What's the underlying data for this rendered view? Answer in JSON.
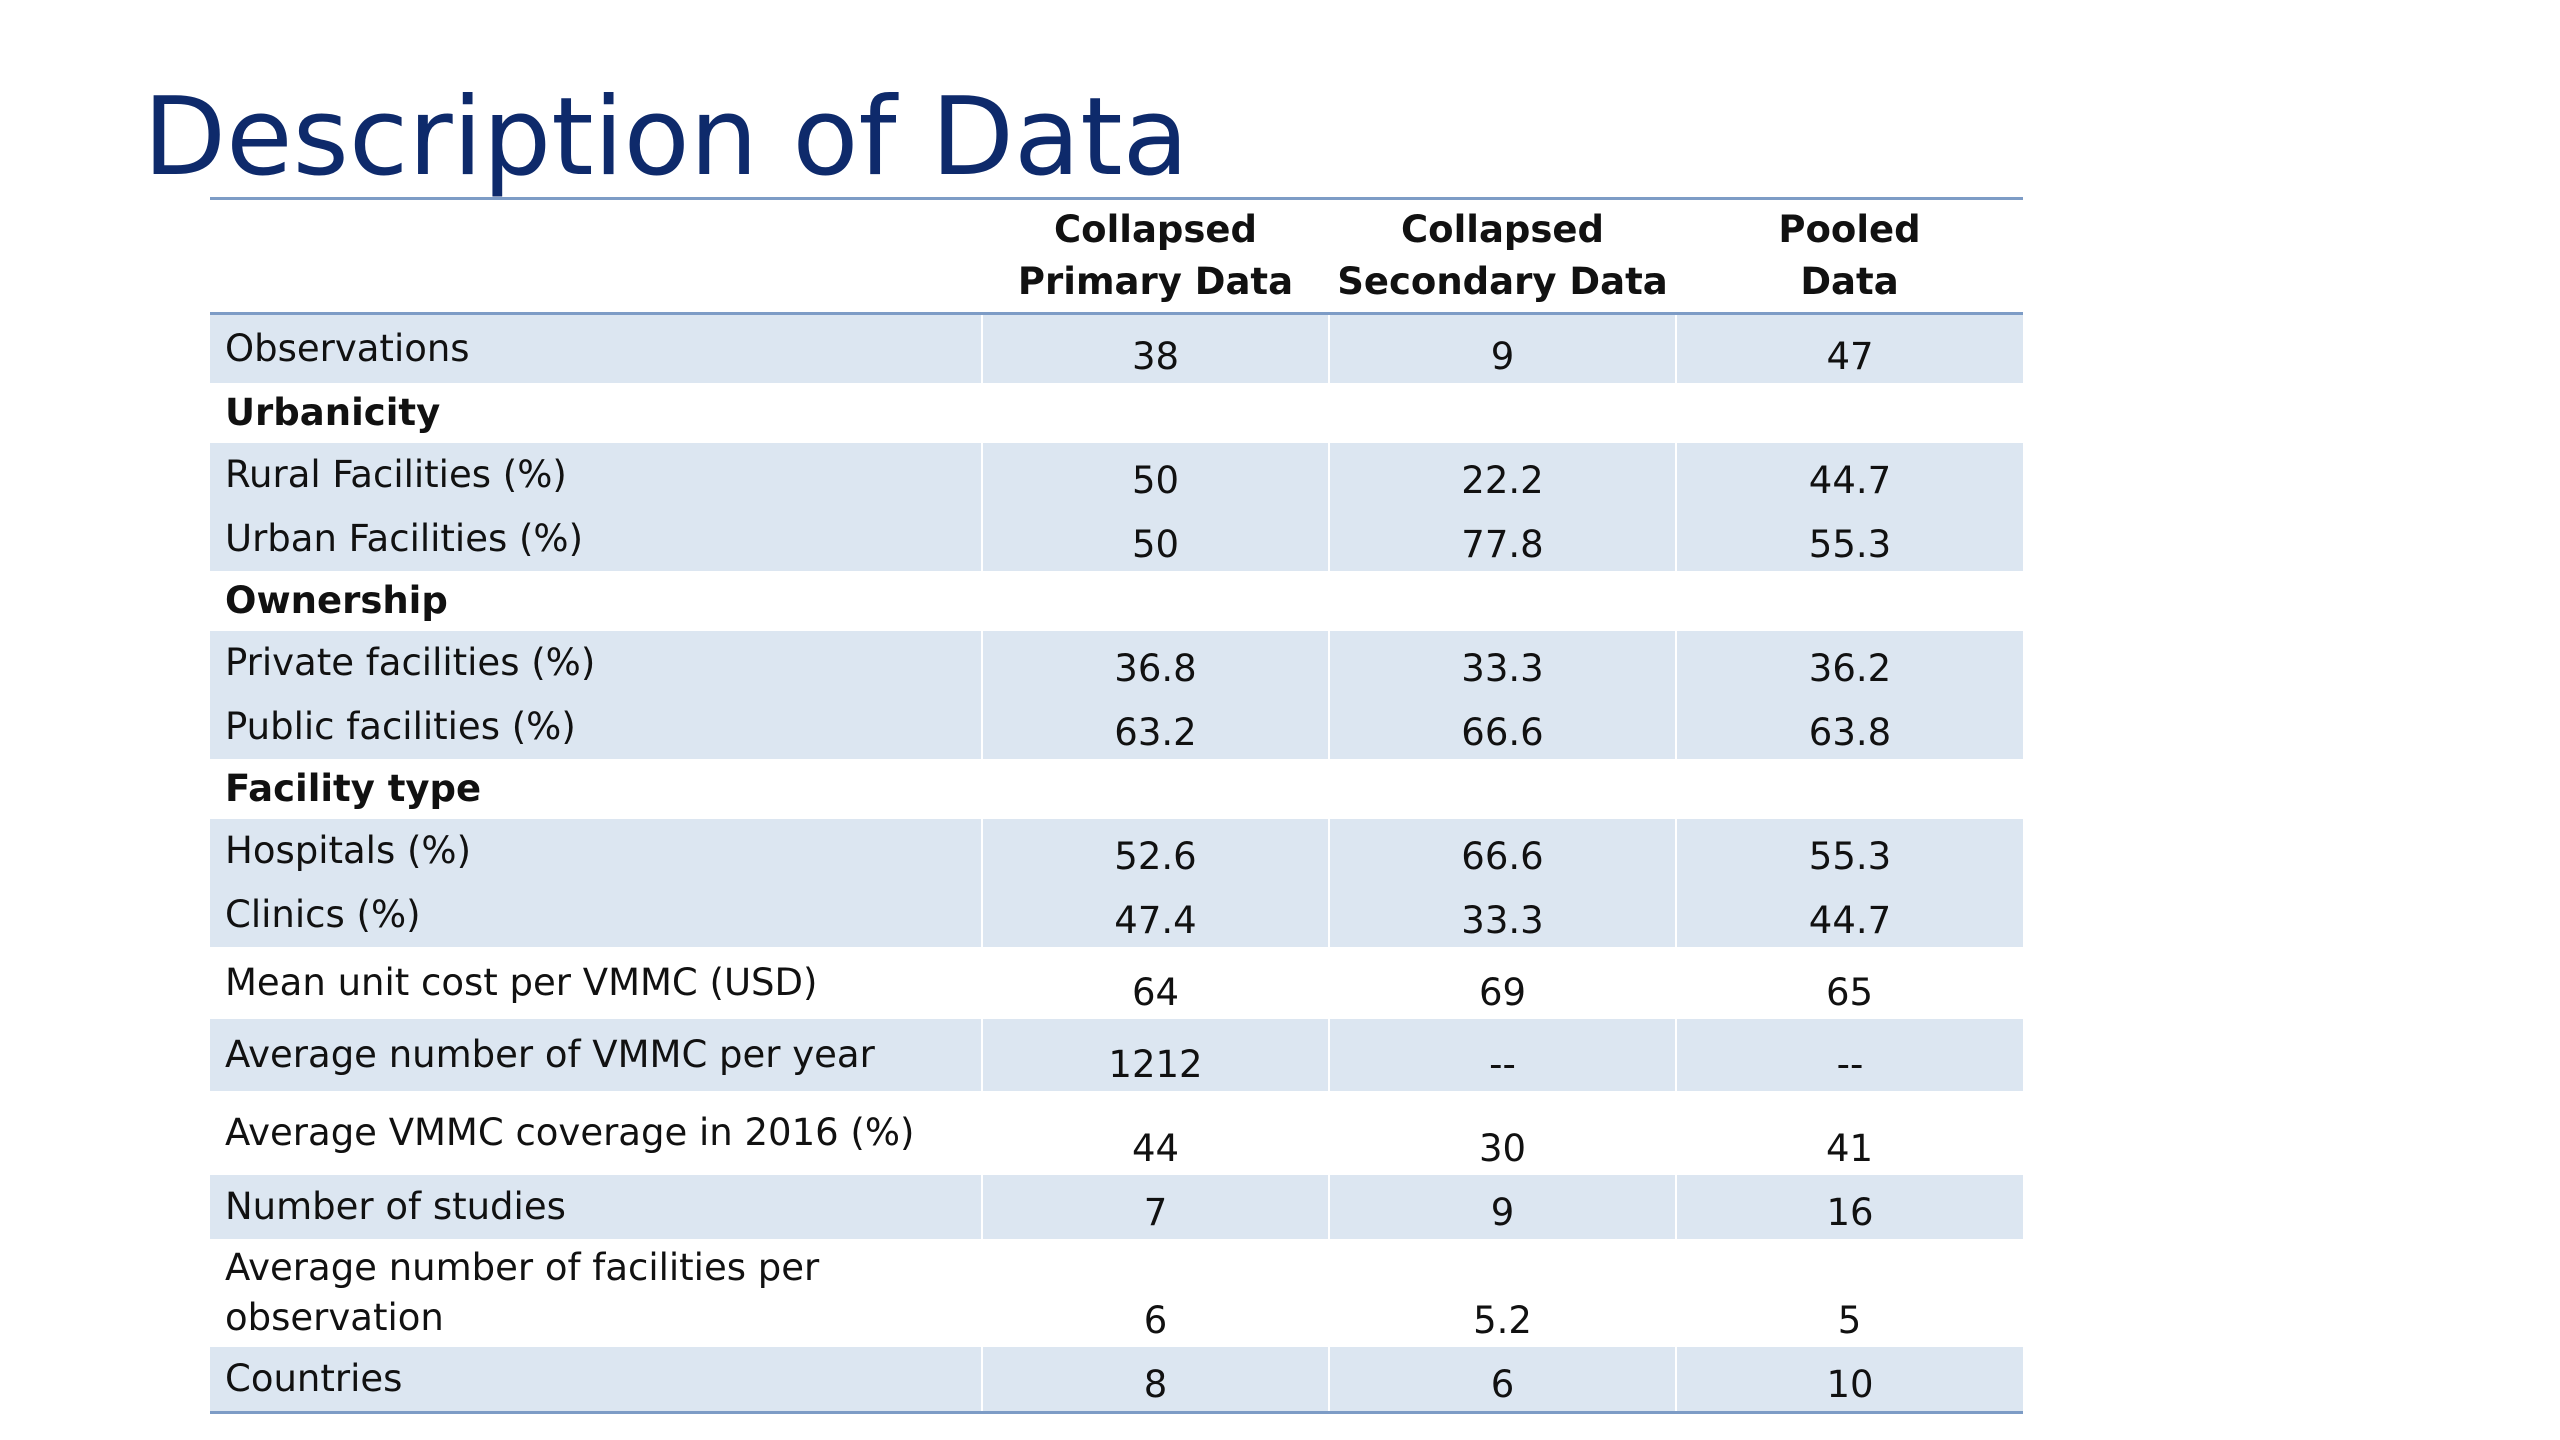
{
  "slide": {
    "title": "Description of Data"
  },
  "table": {
    "columns": [
      {
        "line1": "",
        "line2": ""
      },
      {
        "line1": "Collapsed",
        "line2": "Primary Data"
      },
      {
        "line1": "Collapsed",
        "line2": "Secondary Data"
      },
      {
        "line1": "Pooled",
        "line2": "Data"
      }
    ],
    "rows": [
      {
        "label": "Observations",
        "primary": "38",
        "secondary": "9",
        "pooled": "47"
      },
      {
        "label": "Urbanicity"
      },
      {
        "label": "Rural Facilities (%)",
        "primary": "50",
        "secondary": "22.2",
        "pooled": "44.7"
      },
      {
        "label": "Urban Facilities (%)",
        "primary": "50",
        "secondary": "77.8",
        "pooled": "55.3"
      },
      {
        "label": "Ownership"
      },
      {
        "label": "Private facilities (%)",
        "primary": "36.8",
        "secondary": "33.3",
        "pooled": "36.2"
      },
      {
        "label": "Public facilities (%)",
        "primary": "63.2",
        "secondary": "66.6",
        "pooled": "63.8"
      },
      {
        "label": "Facility type"
      },
      {
        "label": "Hospitals (%)",
        "primary": "52.6",
        "secondary": "66.6",
        "pooled": "55.3"
      },
      {
        "label": "Clinics (%)",
        "primary": "47.4",
        "secondary": "33.3",
        "pooled": "44.7"
      },
      {
        "label": "Mean unit cost per VMMC (USD)",
        "primary": "64",
        "secondary": "69",
        "pooled": "65"
      },
      {
        "label": "Average number of VMMC per year",
        "primary": "1212",
        "secondary": "--",
        "pooled": "--"
      },
      {
        "label": "Average VMMC coverage in 2016 (%)",
        "primary": "44",
        "secondary": "30",
        "pooled": "41"
      },
      {
        "label": "Number of studies",
        "primary": "7",
        "secondary": "9",
        "pooled": "16"
      },
      {
        "label_line1": "Average number of facilities per",
        "label_line2": "observation",
        "primary": "6",
        "secondary": "5.2",
        "pooled": "5"
      },
      {
        "label": "Countries",
        "primary": "8",
        "secondary": "6",
        "pooled": "10"
      }
    ]
  }
}
